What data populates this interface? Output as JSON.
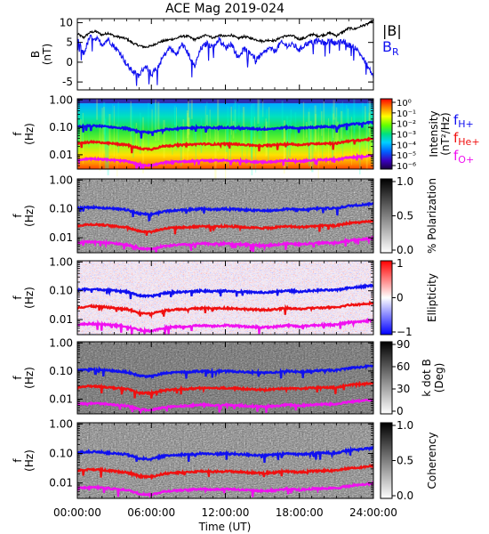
{
  "chart_data": {
    "title": "ACE Mag 2019-024",
    "xlabel": "Time (UT)",
    "x_ticks": [
      "00:00:00",
      "06:00:00",
      "12:00:00",
      "18:00:00",
      "24:00:00"
    ],
    "x_tick_hours": [
      0,
      6,
      12,
      18,
      24
    ],
    "xlim_hours": [
      0,
      24
    ],
    "panels": [
      {
        "id": "b",
        "type": "line",
        "ylabel": "B (nT)",
        "ylim": [
          -7,
          11
        ],
        "y_ticks": [
          10,
          5,
          0,
          -5
        ],
        "series": [
          {
            "name": "|B|",
            "color": "#000000",
            "points": [
              [
                0,
                7.2
              ],
              [
                0.5,
                6.2
              ],
              [
                1,
                7.5
              ],
              [
                1.5,
                7.8
              ],
              [
                2,
                6.9
              ],
              [
                2.5,
                7.4
              ],
              [
                3,
                6.6
              ],
              [
                3.5,
                6.3
              ],
              [
                4,
                5.9
              ],
              [
                4.5,
                4.8
              ],
              [
                5,
                4.2
              ],
              [
                5.5,
                3.8
              ],
              [
                6,
                4.1
              ],
              [
                6.5,
                4.9
              ],
              [
                7,
                5.4
              ],
              [
                7.5,
                5.7
              ],
              [
                8,
                6.0
              ],
              [
                8.5,
                6.6
              ],
              [
                9,
                6.5
              ],
              [
                9.5,
                5.7
              ],
              [
                10,
                6.3
              ],
              [
                10.5,
                7.0
              ],
              [
                11,
                6.1
              ],
              [
                11.5,
                6.8
              ],
              [
                12,
                6.5
              ],
              [
                12.5,
                6.9
              ],
              [
                13,
                6.0
              ],
              [
                13.5,
                6.5
              ],
              [
                14,
                6.1
              ],
              [
                14.5,
                5.7
              ],
              [
                15,
                5.3
              ],
              [
                15.5,
                5.6
              ],
              [
                16,
                5.4
              ],
              [
                16.5,
                6.3
              ],
              [
                17,
                6.7
              ],
              [
                17.5,
                6.6
              ],
              [
                18,
                5.8
              ],
              [
                18.5,
                6.2
              ],
              [
                19,
                7.1
              ],
              [
                19.5,
                6.6
              ],
              [
                20,
                6.9
              ],
              [
                20.5,
                7.4
              ],
              [
                21,
                6.7
              ],
              [
                21.5,
                7.6
              ],
              [
                22,
                8.6
              ],
              [
                22.5,
                8.4
              ],
              [
                23,
                9.1
              ],
              [
                23.5,
                9.6
              ],
              [
                24,
                10.5
              ]
            ]
          },
          {
            "name": "B",
            "subscript": "R",
            "color": "#1010f0",
            "points": [
              [
                0,
                6.2
              ],
              [
                0.5,
                2.0
              ],
              [
                1,
                6.3
              ],
              [
                1.5,
                6.1
              ],
              [
                2,
                4.5
              ],
              [
                2.5,
                5.8
              ],
              [
                3,
                3.9
              ],
              [
                3.5,
                2.2
              ],
              [
                4,
                -0.6
              ],
              [
                4.5,
                -2.4
              ],
              [
                5,
                -3.4
              ],
              [
                5.5,
                -0.9
              ],
              [
                6,
                -2.9
              ],
              [
                6.5,
                -1.5
              ],
              [
                7,
                1.6
              ],
              [
                7.5,
                3.7
              ],
              [
                8,
                1.9
              ],
              [
                8.5,
                4.6
              ],
              [
                9,
                2.1
              ],
              [
                9.5,
                -1.2
              ],
              [
                10,
                3.4
              ],
              [
                10.5,
                4.8
              ],
              [
                11,
                3.8
              ],
              [
                11.5,
                5.9
              ],
              [
                12,
                3.6
              ],
              [
                12.5,
                4.7
              ],
              [
                13,
                1.2
              ],
              [
                13.5,
                3.3
              ],
              [
                14,
                2.6
              ],
              [
                14.5,
                0.7
              ],
              [
                15,
                1.9
              ],
              [
                15.5,
                3.5
              ],
              [
                16,
                2.8
              ],
              [
                16.5,
                4.9
              ],
              [
                17,
                4.2
              ],
              [
                17.5,
                4.4
              ],
              [
                18,
                3.1
              ],
              [
                18.5,
                4.6
              ],
              [
                19,
                5.0
              ],
              [
                19.5,
                5.4
              ],
              [
                20,
                4.9
              ],
              [
                20.5,
                5.5
              ],
              [
                21,
                4.7
              ],
              [
                21.5,
                5.2
              ],
              [
                22,
                4.3
              ],
              [
                22.5,
                3.9
              ],
              [
                23,
                1.8
              ],
              [
                23.5,
                -0.9
              ],
              [
                24,
                -3.6
              ]
            ]
          }
        ]
      },
      {
        "id": "intensity",
        "type": "heatmap",
        "ylabel": "f (Hz)",
        "colorbar_label": "Intensity (nT²/Hz)",
        "colorbar_ticks": [
          "10⁰",
          "10⁻¹",
          "10⁻²",
          "10⁻³",
          "10⁻⁴",
          "10⁻⁵",
          "10⁻⁶"
        ],
        "colorbar_tick_values": [
          1,
          0.1,
          0.01,
          0.001,
          0.0001,
          1e-05,
          1e-06
        ],
        "colormap": "rainbow"
      },
      {
        "id": "polarization",
        "type": "heatmap",
        "ylabel": "f (Hz)",
        "colorbar_label": "% Polarization",
        "colorbar_ticks": [
          "1.0",
          "0.5",
          "0.0"
        ],
        "colorbar_tick_values": [
          1.0,
          0.5,
          0.0
        ],
        "colormap": "gray"
      },
      {
        "id": "ellipticity",
        "type": "heatmap",
        "ylabel": "f (Hz)",
        "colorbar_label": "Ellipticity",
        "colorbar_ticks": [
          "1",
          "0",
          "−1"
        ],
        "colorbar_tick_values": [
          1,
          0,
          -1
        ],
        "colormap": "blue-white-red"
      },
      {
        "id": "kdotb",
        "type": "heatmap",
        "ylabel": "f (Hz)",
        "colorbar_label": "k dot B (Deg)",
        "colorbar_ticks": [
          "90",
          "60",
          "30",
          "0"
        ],
        "colorbar_tick_values": [
          90,
          60,
          30,
          0
        ],
        "colormap": "gray"
      },
      {
        "id": "coherency",
        "type": "heatmap",
        "ylabel": "f (Hz)",
        "colorbar_label": "Coherency",
        "colorbar_ticks": [
          "1.0",
          "0.5",
          "0.0"
        ],
        "colorbar_tick_values": [
          1.0,
          0.5,
          0.0
        ],
        "colormap": "gray"
      }
    ],
    "freq_axis": {
      "scale": "log",
      "ylim_hz": [
        0.003,
        1.1
      ],
      "y_ticks": [
        "1.00",
        "0.10",
        "0.01"
      ],
      "y_tick_values": [
        1.0,
        0.1,
        0.01
      ]
    },
    "gyrofrequency_lines": [
      {
        "name": "f",
        "subscript": "H+",
        "color": "#1010f0",
        "points_hz": [
          [
            0,
            0.105
          ],
          [
            1,
            0.115
          ],
          [
            2,
            0.11
          ],
          [
            3,
            0.1
          ],
          [
            4,
            0.092
          ],
          [
            5,
            0.068
          ],
          [
            6,
            0.064
          ],
          [
            7,
            0.082
          ],
          [
            8,
            0.09
          ],
          [
            9,
            0.093
          ],
          [
            10,
            0.1
          ],
          [
            11,
            0.095
          ],
          [
            12,
            0.1
          ],
          [
            13,
            0.095
          ],
          [
            14,
            0.09
          ],
          [
            15,
            0.086
          ],
          [
            16,
            0.09
          ],
          [
            17,
            0.1
          ],
          [
            18,
            0.093
          ],
          [
            19,
            0.1
          ],
          [
            20,
            0.105
          ],
          [
            21,
            0.105
          ],
          [
            22,
            0.127
          ],
          [
            23,
            0.138
          ],
          [
            24,
            0.154
          ]
        ]
      },
      {
        "name": "f",
        "subscript": "He+",
        "color": "#f01010",
        "points_hz": [
          [
            0,
            0.026
          ],
          [
            1,
            0.029
          ],
          [
            2,
            0.028
          ],
          [
            3,
            0.025
          ],
          [
            4,
            0.023
          ],
          [
            5,
            0.017
          ],
          [
            6,
            0.016
          ],
          [
            7,
            0.0205
          ],
          [
            8,
            0.0225
          ],
          [
            9,
            0.023
          ],
          [
            10,
            0.025
          ],
          [
            11,
            0.024
          ],
          [
            12,
            0.025
          ],
          [
            13,
            0.024
          ],
          [
            14,
            0.0225
          ],
          [
            15,
            0.0215
          ],
          [
            16,
            0.0225
          ],
          [
            17,
            0.025
          ],
          [
            18,
            0.023
          ],
          [
            19,
            0.025
          ],
          [
            20,
            0.026
          ],
          [
            21,
            0.026
          ],
          [
            22,
            0.032
          ],
          [
            23,
            0.034
          ],
          [
            24,
            0.038
          ]
        ]
      },
      {
        "name": "f",
        "subscript": "O+",
        "color": "#f010f0",
        "points_hz": [
          [
            0,
            0.0066
          ],
          [
            1,
            0.0072
          ],
          [
            2,
            0.0069
          ],
          [
            3,
            0.0063
          ],
          [
            4,
            0.0058
          ],
          [
            5,
            0.0043
          ],
          [
            6,
            0.004
          ],
          [
            7,
            0.0051
          ],
          [
            8,
            0.0056
          ],
          [
            9,
            0.0058
          ],
          [
            10,
            0.0063
          ],
          [
            11,
            0.006
          ],
          [
            12,
            0.0063
          ],
          [
            13,
            0.006
          ],
          [
            14,
            0.0056
          ],
          [
            15,
            0.0054
          ],
          [
            16,
            0.0056
          ],
          [
            17,
            0.0063
          ],
          [
            18,
            0.0058
          ],
          [
            19,
            0.0063
          ],
          [
            20,
            0.0066
          ],
          [
            21,
            0.0066
          ],
          [
            22,
            0.008
          ],
          [
            23,
            0.0086
          ],
          [
            24,
            0.0096
          ]
        ]
      }
    ]
  }
}
